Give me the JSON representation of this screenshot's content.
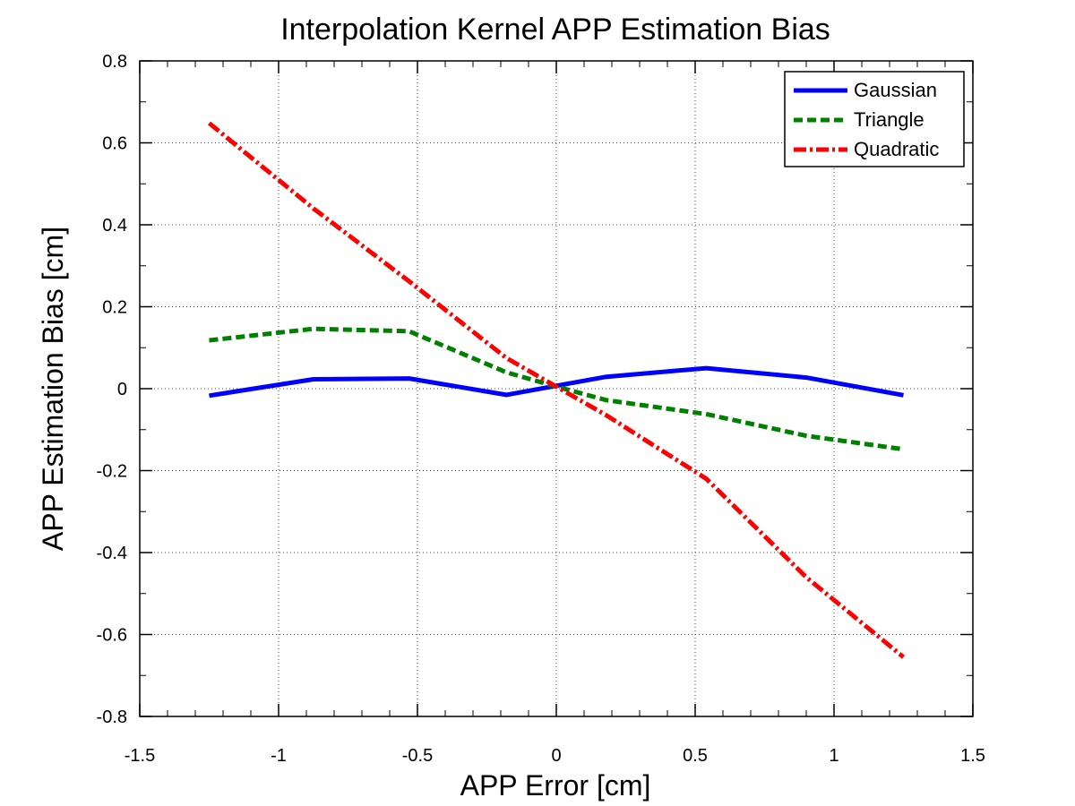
{
  "chart_data": {
    "type": "line",
    "title": "Interpolation Kernel APP Estimation Bias",
    "xlabel": "APP Error [cm]",
    "ylabel": "APP Estimation Bias [cm]",
    "xlim": [
      -1.5,
      1.5
    ],
    "ylim": [
      -0.8,
      0.8
    ],
    "xticks": [
      -1.5,
      -1,
      -0.5,
      0,
      0.5,
      1,
      1.5
    ],
    "xtick_labels": [
      "-1.5",
      "-1",
      "-0.5",
      "0",
      "0.5",
      "1",
      "1.5"
    ],
    "yticks": [
      -0.8,
      -0.6,
      -0.4,
      -0.2,
      0,
      0.2,
      0.4,
      0.6,
      0.8
    ],
    "ytick_labels": [
      "-0.8",
      "-0.6",
      "-0.4",
      "-0.2",
      "0",
      "0.2",
      "0.4",
      "0.6",
      "0.8"
    ],
    "grid": true,
    "legend_position": "top-right",
    "series": [
      {
        "name": "Gaussian",
        "color": "#0000ff",
        "style": "solid",
        "x": [
          -1.25,
          -0.875,
          -0.53,
          -0.18,
          0.0,
          0.18,
          0.54,
          0.9,
          1.25
        ],
        "y": [
          -0.017,
          0.023,
          0.025,
          -0.015,
          0.007,
          0.029,
          0.05,
          0.027,
          -0.016
        ]
      },
      {
        "name": "Triangle",
        "color": "#008000",
        "style": "dashed",
        "x": [
          -1.25,
          -0.875,
          -0.53,
          -0.18,
          0.0,
          0.18,
          0.54,
          0.9,
          1.25
        ],
        "y": [
          0.118,
          0.146,
          0.14,
          0.04,
          0.005,
          -0.028,
          -0.062,
          -0.115,
          -0.148
        ]
      },
      {
        "name": "Quadratic",
        "color": "#ff0000",
        "style": "dashdot",
        "x": [
          -1.25,
          -0.875,
          -0.53,
          -0.18,
          0.0,
          0.18,
          0.54,
          0.9,
          1.25
        ],
        "y": [
          0.648,
          0.44,
          0.262,
          0.075,
          0.005,
          -0.065,
          -0.22,
          -0.46,
          -0.655
        ]
      }
    ]
  }
}
